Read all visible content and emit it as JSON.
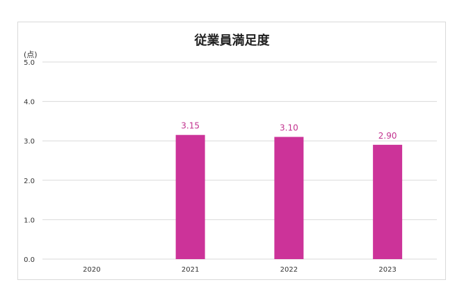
{
  "chart_data": {
    "type": "bar",
    "title": "従業員満足度",
    "unit_label": "(点)",
    "categories": [
      "2020",
      "2021",
      "2022",
      "2023"
    ],
    "values": [
      null,
      3.15,
      3.1,
      2.9
    ],
    "value_labels": [
      "",
      "3.15",
      "3.10",
      "2.90"
    ],
    "ylim": [
      0,
      5
    ],
    "yticks": [
      "0.0",
      "1.0",
      "2.0",
      "3.0",
      "4.0",
      "5.0"
    ],
    "grid": true,
    "colors": {
      "bar": "#cc3399",
      "label": "#c2338f",
      "grid": "#d9d9d9",
      "axis_text": "#333333"
    }
  }
}
